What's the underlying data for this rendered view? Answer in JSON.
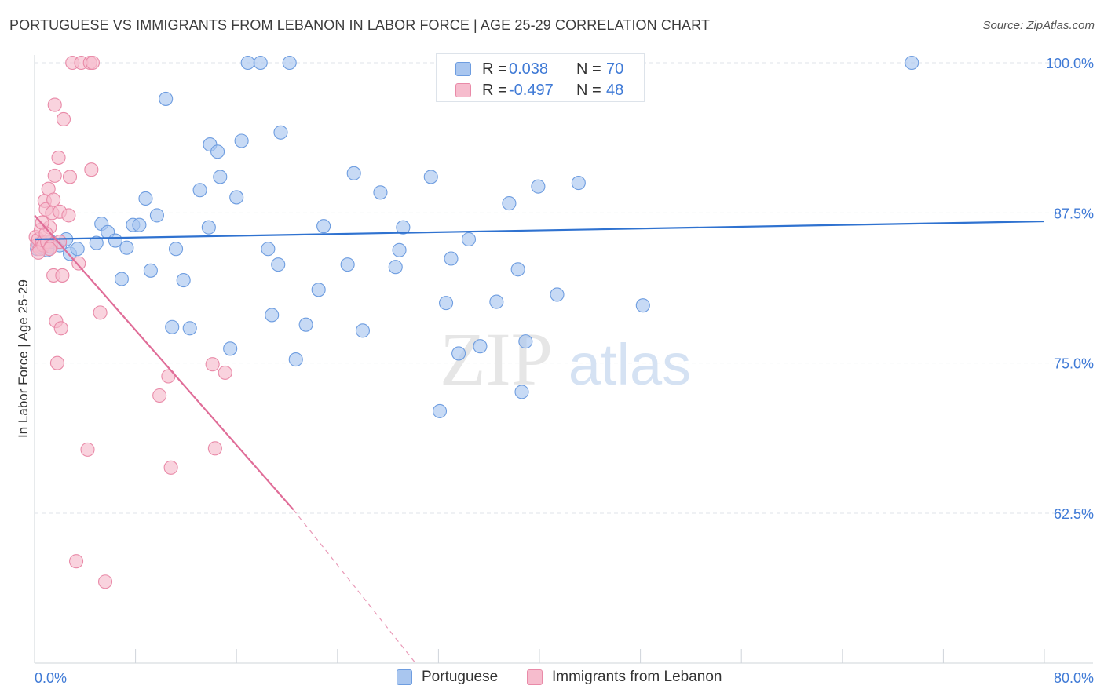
{
  "title": "PORTUGUESE VS IMMIGRANTS FROM LEBANON IN LABOR FORCE | AGE 25-29 CORRELATION CHART",
  "source": "Source: ZipAtlas.com",
  "watermark": {
    "zip": "ZIP",
    "atlas": "atlas"
  },
  "legend": {
    "r_label": "R =",
    "n_label": "N =",
    "rows": [
      {
        "r": "0.038",
        "n": "70",
        "color": "#a9c6ef",
        "border": "#6e9de0"
      },
      {
        "r": "-0.497",
        "n": "48",
        "color": "#f6bccd",
        "border": "#e98aa8"
      }
    ]
  },
  "bottom_legend": [
    {
      "label": "Portuguese",
      "color": "#a9c6ef",
      "border": "#6e9de0"
    },
    {
      "label": "Immigrants from Lebanon",
      "color": "#f6bccd",
      "border": "#e98aa8"
    }
  ],
  "chart_data": {
    "type": "scatter",
    "title": "PORTUGUESE VS IMMIGRANTS FROM LEBANON IN LABOR FORCE | AGE 25-29 CORRELATION CHART",
    "xlabel": "",
    "ylabel": "In Labor Force | Age 25-29",
    "xlim": [
      0,
      80
    ],
    "ylim": [
      50,
      102
    ],
    "x_tick_labels": [
      "0.0%",
      "80.0%"
    ],
    "y_ticks": [
      62.5,
      75.0,
      87.5,
      100.0
    ],
    "y_tick_labels": [
      "62.5%",
      "75.0%",
      "87.5%",
      "100.0%"
    ],
    "grid": "horizontal dashed",
    "legend_position": "top-center",
    "series": [
      {
        "name": "Portuguese",
        "color": "#a9c6ef",
        "stroke": "#6e9de0",
        "trend": {
          "x": [
            0,
            80
          ],
          "y": [
            85.3,
            86.8
          ],
          "color": "#2f72d0"
        },
        "points": [
          [
            0.2,
            84.5
          ],
          [
            0.3,
            84.9
          ],
          [
            0.5,
            85.0
          ],
          [
            0.6,
            84.6
          ],
          [
            0.8,
            85.1
          ],
          [
            1.0,
            84.4
          ],
          [
            1.3,
            85.1
          ],
          [
            2.0,
            84.8
          ],
          [
            2.5,
            85.3
          ],
          [
            2.8,
            84.1
          ],
          [
            3.4,
            84.5
          ],
          [
            4.9,
            85.0
          ],
          [
            5.3,
            86.6
          ],
          [
            5.8,
            85.9
          ],
          [
            6.4,
            85.2
          ],
          [
            6.9,
            82.0
          ],
          [
            7.3,
            84.6
          ],
          [
            7.8,
            86.5
          ],
          [
            8.3,
            86.5
          ],
          [
            8.8,
            88.7
          ],
          [
            9.2,
            82.7
          ],
          [
            9.7,
            87.3
          ],
          [
            10.4,
            97.0
          ],
          [
            10.9,
            78.0
          ],
          [
            11.2,
            84.5
          ],
          [
            11.8,
            81.9
          ],
          [
            12.3,
            77.9
          ],
          [
            13.1,
            89.4
          ],
          [
            13.8,
            86.3
          ],
          [
            13.9,
            93.2
          ],
          [
            14.5,
            92.6
          ],
          [
            14.7,
            90.5
          ],
          [
            15.5,
            76.2
          ],
          [
            16.0,
            88.8
          ],
          [
            16.4,
            93.5
          ],
          [
            16.9,
            100.0
          ],
          [
            17.9,
            100.0
          ],
          [
            18.5,
            84.5
          ],
          [
            18.8,
            79.0
          ],
          [
            19.3,
            83.2
          ],
          [
            19.5,
            94.2
          ],
          [
            20.2,
            100.0
          ],
          [
            20.7,
            75.3
          ],
          [
            21.5,
            78.2
          ],
          [
            22.5,
            81.1
          ],
          [
            22.9,
            86.4
          ],
          [
            24.8,
            83.2
          ],
          [
            25.3,
            90.8
          ],
          [
            26.0,
            77.7
          ],
          [
            27.4,
            89.2
          ],
          [
            28.6,
            83.0
          ],
          [
            28.9,
            84.4
          ],
          [
            29.2,
            86.3
          ],
          [
            31.4,
            90.5
          ],
          [
            32.1,
            71.0
          ],
          [
            32.6,
            80.0
          ],
          [
            33.0,
            83.7
          ],
          [
            33.6,
            75.8
          ],
          [
            34.4,
            85.3
          ],
          [
            35.3,
            76.4
          ],
          [
            36.6,
            80.1
          ],
          [
            37.6,
            88.3
          ],
          [
            38.3,
            82.8
          ],
          [
            38.6,
            72.6
          ],
          [
            38.9,
            76.8
          ],
          [
            39.9,
            89.7
          ],
          [
            41.4,
            80.7
          ],
          [
            43.1,
            90.0
          ],
          [
            48.2,
            79.8
          ],
          [
            69.5,
            100.0
          ]
        ]
      },
      {
        "name": "Immigrants from Lebanon",
        "color": "#f6bccd",
        "stroke": "#e98aa8",
        "trend": {
          "x": [
            0,
            20.5
          ],
          "y": [
            87.3,
            62.8
          ],
          "dash_to": [
            30.2,
            50.0
          ],
          "color": "#e06d98"
        },
        "points": [
          [
            0.1,
            85.5
          ],
          [
            0.2,
            84.8
          ],
          [
            0.3,
            85.3
          ],
          [
            0.4,
            84.5
          ],
          [
            0.5,
            86.1
          ],
          [
            0.6,
            85.0
          ],
          [
            0.7,
            84.8
          ],
          [
            0.8,
            88.5
          ],
          [
            0.9,
            87.8
          ],
          [
            1.0,
            85.1
          ],
          [
            1.1,
            89.5
          ],
          [
            1.2,
            86.3
          ],
          [
            1.3,
            84.7
          ],
          [
            1.4,
            87.5
          ],
          [
            1.5,
            82.3
          ],
          [
            1.6,
            90.6
          ],
          [
            1.6,
            96.5
          ],
          [
            1.7,
            78.5
          ],
          [
            1.8,
            75.0
          ],
          [
            1.9,
            92.1
          ],
          [
            2.0,
            87.6
          ],
          [
            2.1,
            77.9
          ],
          [
            2.2,
            82.3
          ],
          [
            2.3,
            95.3
          ],
          [
            2.0,
            85.1
          ],
          [
            2.7,
            87.3
          ],
          [
            2.8,
            90.5
          ],
          [
            3.0,
            100.0
          ],
          [
            3.3,
            58.5
          ],
          [
            3.5,
            83.3
          ],
          [
            3.7,
            100.0
          ],
          [
            4.2,
            67.8
          ],
          [
            4.4,
            100.0
          ],
          [
            4.5,
            91.1
          ],
          [
            4.6,
            100.0
          ],
          [
            5.2,
            79.2
          ],
          [
            5.6,
            56.8
          ],
          [
            9.9,
            72.3
          ],
          [
            10.6,
            73.9
          ],
          [
            10.8,
            66.3
          ],
          [
            14.1,
            74.9
          ],
          [
            14.3,
            67.9
          ],
          [
            15.1,
            74.2
          ],
          [
            0.9,
            85.8
          ],
          [
            1.2,
            84.5
          ],
          [
            0.6,
            86.7
          ],
          [
            1.5,
            88.6
          ],
          [
            0.3,
            84.2
          ]
        ]
      }
    ]
  }
}
